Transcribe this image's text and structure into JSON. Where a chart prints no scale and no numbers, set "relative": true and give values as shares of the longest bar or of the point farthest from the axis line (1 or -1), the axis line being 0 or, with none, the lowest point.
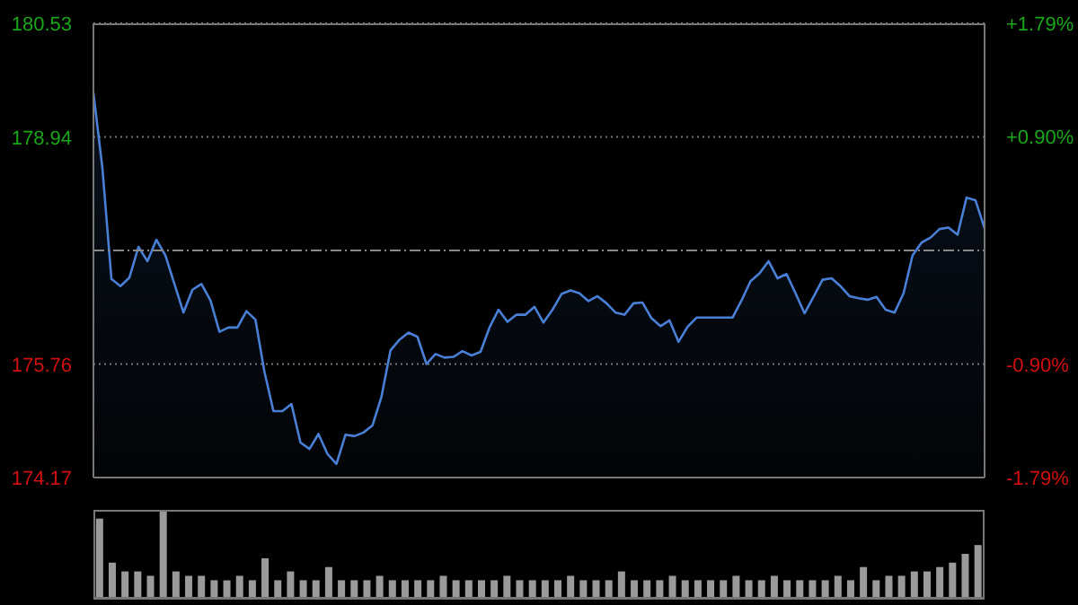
{
  "chart_data": [
    {
      "type": "area",
      "color": "#4a7fd6",
      "categories": [
        null,
        null,
        null,
        null,
        null,
        null,
        null,
        null,
        null,
        null,
        null,
        null,
        null,
        null,
        null,
        null,
        null,
        null,
        null,
        null,
        null,
        null,
        null,
        null,
        null,
        null,
        null,
        null,
        null,
        null,
        null,
        null,
        null,
        null,
        null,
        null,
        null,
        null,
        null,
        null,
        null,
        null,
        null,
        null,
        null,
        null,
        null,
        null,
        null,
        null,
        null,
        null,
        null,
        null,
        null,
        null,
        null,
        null,
        null,
        null,
        null,
        null,
        null,
        null,
        null,
        null,
        null,
        null,
        null,
        null,
        null,
        null,
        null,
        null,
        null,
        null,
        null,
        null,
        null,
        null,
        null,
        null,
        null,
        null,
        null,
        null,
        null,
        null,
        null,
        null,
        null,
        null,
        null,
        null,
        null,
        null,
        null,
        null,
        null,
        null
      ],
      "values": [
        179.56,
        178.5,
        176.95,
        176.85,
        176.97,
        177.4,
        177.2,
        177.5,
        177.28,
        176.88,
        176.48,
        176.8,
        176.88,
        176.65,
        176.21,
        176.27,
        176.27,
        176.5,
        176.38,
        175.65,
        175.1,
        175.1,
        175.2,
        174.66,
        174.57,
        174.78,
        174.5,
        174.36,
        174.77,
        174.75,
        174.8,
        174.9,
        175.3,
        175.95,
        176.1,
        176.2,
        176.14,
        175.76,
        175.9,
        175.85,
        175.86,
        175.94,
        175.88,
        175.93,
        176.27,
        176.52,
        176.35,
        176.45,
        176.45,
        176.56,
        176.34,
        176.52,
        176.74,
        176.79,
        176.75,
        176.64,
        176.71,
        176.61,
        176.48,
        176.45,
        176.61,
        176.62,
        176.4,
        176.29,
        176.37,
        176.07,
        176.28,
        176.41,
        176.41,
        176.41,
        176.41,
        176.41,
        176.65,
        176.92,
        177.03,
        177.2,
        176.96,
        177.02,
        176.75,
        176.47,
        176.7,
        176.94,
        176.96,
        176.85,
        176.71,
        176.68,
        176.66,
        176.7,
        176.52,
        176.48,
        176.75,
        177.28,
        177.46,
        177.53,
        177.65,
        177.67,
        177.57,
        178.09,
        178.05,
        177.66
      ],
      "ylim": [
        174.17,
        180.53
      ],
      "yticks": [
        174.17,
        175.76,
        178.94,
        180.53
      ],
      "y2lim": [
        -1.79,
        1.79
      ],
      "y2ticks": [
        {
          "value": -1.79,
          "label": "-1.79%"
        },
        {
          "value": -0.9,
          "label": "-0.90%"
        },
        {
          "value": 0.9,
          "label": "+0.90%"
        },
        {
          "value": 1.79,
          "label": "+1.79%"
        }
      ],
      "ref_lines": [
        {
          "axis": "y",
          "value": 177.35,
          "color": "#888888",
          "line_style": "dashed"
        }
      ],
      "grid": "y",
      "tick_labels": "y",
      "legend": false
    },
    {
      "type": "bar",
      "relative": true,
      "color": "#9a9a9a",
      "tick_labels": false,
      "legend": false,
      "categories": [
        null,
        null,
        null,
        null,
        null,
        null,
        null,
        null,
        null,
        null,
        null,
        null,
        null,
        null,
        null,
        null,
        null,
        null,
        null,
        null,
        null,
        null,
        null,
        null,
        null,
        null,
        null,
        null,
        null,
        null,
        null,
        null,
        null,
        null,
        null,
        null,
        null,
        null,
        null,
        null,
        null,
        null,
        null,
        null,
        null,
        null,
        null,
        null,
        null,
        null,
        null,
        null,
        null,
        null,
        null,
        null,
        null,
        null,
        null,
        null,
        null,
        null,
        null,
        null,
        null,
        null,
        null,
        null,
        null,
        null
      ],
      "values": [
        0.9,
        0.4,
        0.3,
        0.3,
        0.25,
        1.0,
        0.3,
        0.25,
        0.25,
        0.2,
        0.2,
        0.25,
        0.2,
        0.45,
        0.2,
        0.3,
        0.2,
        0.2,
        0.35,
        0.2,
        0.2,
        0.2,
        0.25,
        0.2,
        0.2,
        0.2,
        0.2,
        0.25,
        0.2,
        0.2,
        0.2,
        0.2,
        0.25,
        0.2,
        0.2,
        0.2,
        0.2,
        0.25,
        0.2,
        0.2,
        0.2,
        0.3,
        0.2,
        0.2,
        0.2,
        0.25,
        0.2,
        0.2,
        0.2,
        0.2,
        0.25,
        0.2,
        0.2,
        0.25,
        0.2,
        0.2,
        0.2,
        0.2,
        0.25,
        0.2,
        0.35,
        0.2,
        0.25,
        0.25,
        0.3,
        0.3,
        0.35,
        0.4,
        0.5,
        0.6
      ]
    }
  ]
}
